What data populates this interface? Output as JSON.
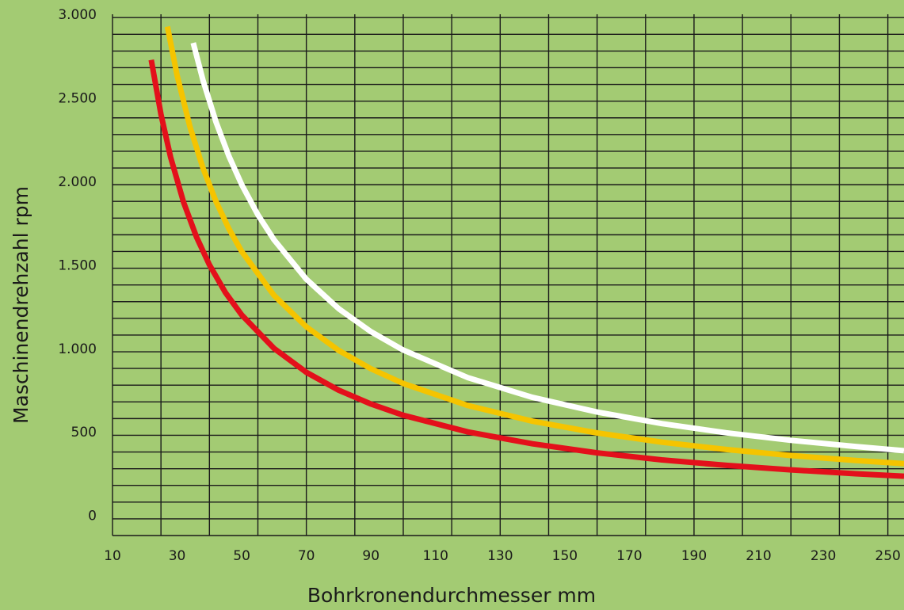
{
  "chart_data": {
    "type": "line",
    "title": "",
    "xlabel": "Bohrkronendurchmesser mm",
    "ylabel": "Maschinendrehzahl rpm",
    "xlim": [
      10,
      255
    ],
    "ylim": [
      -120,
      3000
    ],
    "x_ticks": [
      10,
      30,
      50,
      70,
      90,
      110,
      130,
      150,
      170,
      190,
      210,
      230,
      250
    ],
    "x_tick_labels": [
      "10",
      "30",
      "50",
      "70",
      "90",
      "110",
      "130",
      "150",
      "170",
      "190",
      "210",
      "230",
      "250"
    ],
    "y_ticks": [
      0,
      500,
      1000,
      1500,
      2000,
      2500,
      3000
    ],
    "y_tick_labels": [
      "0",
      "500",
      "1.000",
      "1.500",
      "2.000",
      "2.500",
      "3.000"
    ],
    "grid": true,
    "x_grid_step": 15,
    "y_minor_step": 100,
    "background_color": "#a3cb73",
    "series": [
      {
        "color": "#e3101b",
        "x": [
          22,
          25,
          28,
          32,
          36,
          40,
          45,
          50,
          60,
          70,
          80,
          90,
          100,
          120,
          140,
          160,
          180,
          200,
          220,
          240,
          255
        ],
        "y": [
          2727,
          2400,
          2143,
          1875,
          1667,
          1500,
          1333,
          1200,
          1000,
          857,
          750,
          667,
          600,
          500,
          429,
          375,
          333,
          300,
          273,
          250,
          235
        ]
      },
      {
        "color": "#f5c400",
        "x": [
          27,
          30,
          34,
          38,
          42,
          46,
          50,
          60,
          70,
          80,
          90,
          100,
          120,
          140,
          160,
          180,
          200,
          220,
          240,
          255
        ],
        "y": [
          2926,
          2633,
          2324,
          2079,
          1881,
          1717,
          1580,
          1317,
          1129,
          988,
          878,
          790,
          658,
          564,
          494,
          439,
          395,
          359,
          329,
          310
        ]
      },
      {
        "color": "#ffffff",
        "x": [
          35,
          38,
          42,
          46,
          50,
          55,
          60,
          70,
          80,
          90,
          100,
          120,
          140,
          160,
          180,
          200,
          220,
          240,
          255
        ],
        "y": [
          2829,
          2605,
          2357,
          2152,
          1980,
          1800,
          1650,
          1414,
          1238,
          1100,
          990,
          825,
          707,
          619,
          550,
          495,
          450,
          413,
          388
        ]
      }
    ]
  }
}
